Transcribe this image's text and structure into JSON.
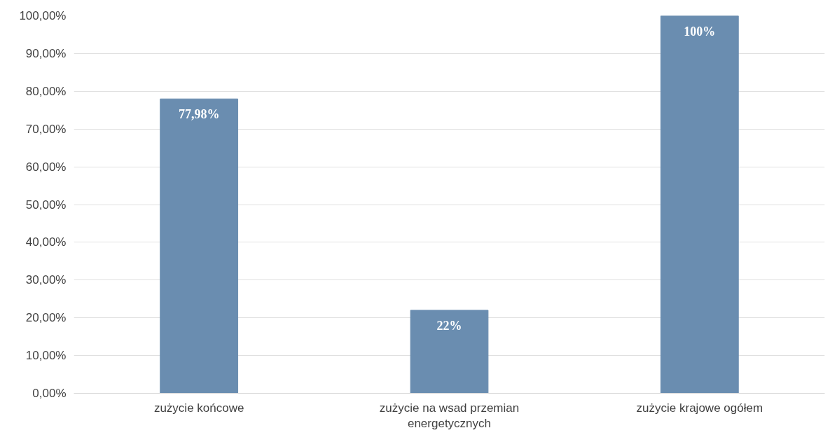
{
  "chart_data": {
    "type": "bar",
    "categories": [
      "zużycie końcowe",
      "zużycie na wsad przemian energetycznych",
      "zużycie krajowe ogółem"
    ],
    "values": [
      77.98,
      22,
      100
    ],
    "value_labels": [
      "77,98%",
      "22%",
      "100%"
    ],
    "color": "#6a8db0",
    "ylim": [
      0,
      100
    ],
    "yticks": [
      {
        "value": 0,
        "label": "0,00%"
      },
      {
        "value": 10,
        "label": "10,00%"
      },
      {
        "value": 20,
        "label": "20,00%"
      },
      {
        "value": 30,
        "label": "30,00%"
      },
      {
        "value": 40,
        "label": "40,00%"
      },
      {
        "value": 50,
        "label": "50,00%"
      },
      {
        "value": 60,
        "label": "60,00%"
      },
      {
        "value": 70,
        "label": "70,00%"
      },
      {
        "value": 80,
        "label": "80,00%"
      },
      {
        "value": 90,
        "label": "90,00%"
      },
      {
        "value": 100,
        "label": "100,00%"
      }
    ],
    "grid": "y"
  }
}
